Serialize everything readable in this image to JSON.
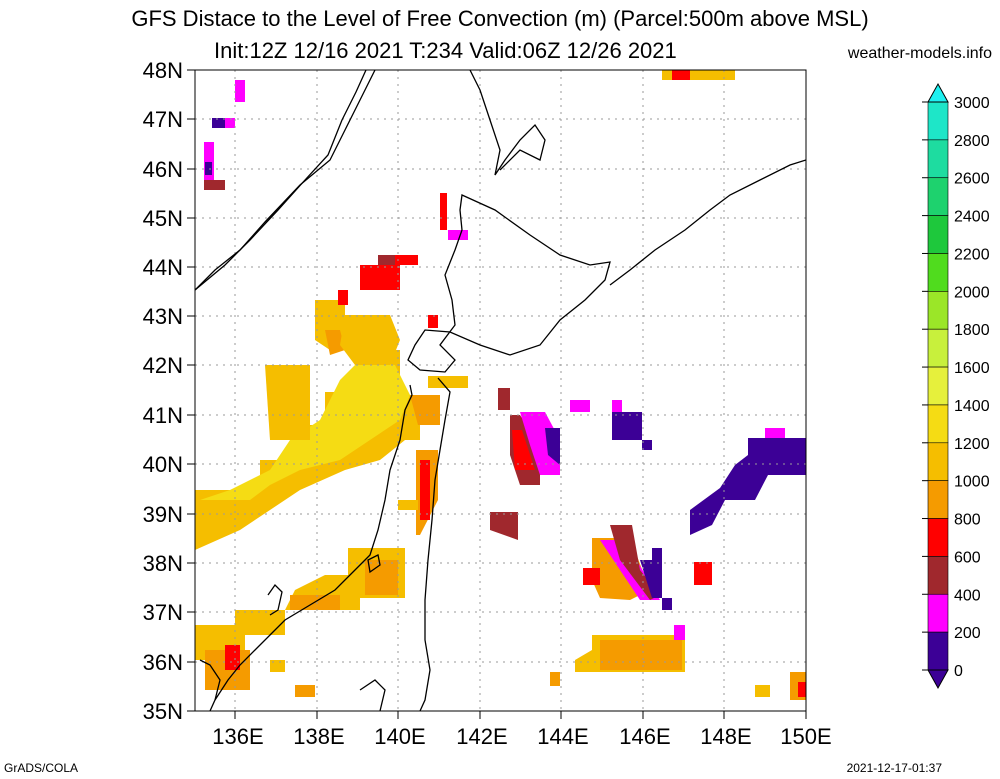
{
  "header": {
    "title_line1": "GFS Distace to the Level of Free Convection (m) (Parcel:500m above MSL)",
    "title_line2": "Init:12Z 12/16 2021 T:234 Valid:06Z 12/26 2021",
    "site": "weather-models.info"
  },
  "footer": {
    "left": "GrADS/COLA",
    "right": "2021-12-17-01:37"
  },
  "map": {
    "lat_labels": [
      "48N",
      "47N",
      "46N",
      "45N",
      "44N",
      "43N",
      "42N",
      "41N",
      "40N",
      "39N",
      "38N",
      "37N",
      "36N",
      "35N"
    ],
    "lon_labels": [
      "136E",
      "138E",
      "140E",
      "142E",
      "144E",
      "146E",
      "148E",
      "150E"
    ],
    "colors": {
      "c0": "#3c0096",
      "c200": "#ff00ff",
      "c400": "#a0282d",
      "c600": "#ff0000",
      "c800": "#f59b00",
      "c1000": "#f5be00",
      "c1200": "#f5dc14",
      "c1400": "#e6f03c"
    }
  },
  "colorbar": {
    "labels": [
      "0",
      "200",
      "400",
      "600",
      "800",
      "1000",
      "1200",
      "1400",
      "1600",
      "1800",
      "2000",
      "2200",
      "2400",
      "2600",
      "2800",
      "3000"
    ],
    "colors": [
      "#3c0096",
      "#ff00ff",
      "#a0282d",
      "#ff0000",
      "#f59b00",
      "#f5be00",
      "#f5dc14",
      "#e6f03c",
      "#c8f03c",
      "#9be628",
      "#50dc1e",
      "#1ec83c",
      "#1ed26e",
      "#1edca0",
      "#1ee6c8",
      "#1ef0f0"
    ]
  }
}
